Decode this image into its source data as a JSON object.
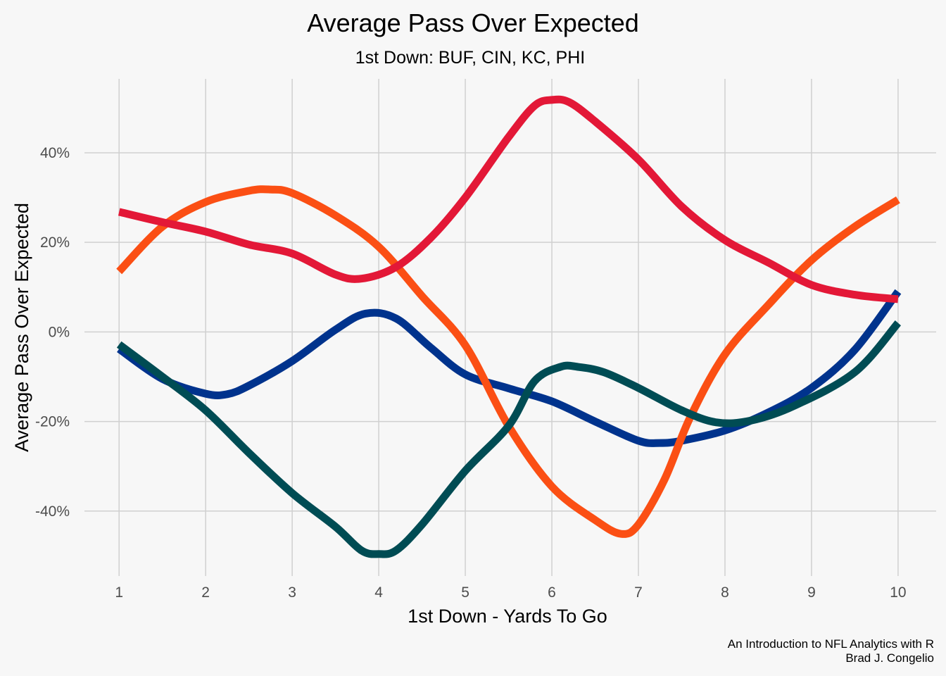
{
  "chart_data": {
    "type": "line",
    "title": "Average Pass Over Expected",
    "subtitle": "1st Down: BUF, CIN, KC, PHI",
    "xlabel": "1st Down - Yards To Go",
    "ylabel": "Average Pass Over Expected",
    "caption": [
      "An Introduction to NFL Analytics with R",
      "Brad J. Congelio"
    ],
    "x": [
      1,
      2,
      3,
      4,
      5,
      6,
      7,
      8,
      9,
      10
    ],
    "x_ticks": [
      "1",
      "2",
      "3",
      "4",
      "5",
      "6",
      "7",
      "8",
      "9",
      "10"
    ],
    "y_ticks": [
      {
        "value": -40,
        "label": "-40%"
      },
      {
        "value": -20,
        "label": "-20%"
      },
      {
        "value": 0,
        "label": "0%"
      },
      {
        "value": 20,
        "label": "20%"
      },
      {
        "value": 40,
        "label": "40%"
      }
    ],
    "xlim": [
      0.6,
      10.44
    ],
    "ylim": [
      -54.5,
      56.5
    ],
    "grid": true,
    "legend": "none",
    "series": [
      {
        "color": "#00338D",
        "values": [
          [
            1,
            -3.8
          ],
          [
            1.5,
            -10.5
          ],
          [
            2,
            -13.8
          ],
          [
            2.25,
            -13.9
          ],
          [
            2.5,
            -12
          ],
          [
            3,
            -6.5
          ],
          [
            3.5,
            0.5
          ],
          [
            3.85,
            4.1
          ],
          [
            4.2,
            3
          ],
          [
            4.6,
            -3.5
          ],
          [
            5,
            -9.5
          ],
          [
            5.5,
            -12.6
          ],
          [
            6,
            -15.5
          ],
          [
            6.5,
            -20
          ],
          [
            7,
            -24.3
          ],
          [
            7.25,
            -24.8
          ],
          [
            7.5,
            -24.3
          ],
          [
            8,
            -22
          ],
          [
            8.5,
            -18
          ],
          [
            9,
            -12.5
          ],
          [
            9.5,
            -4
          ],
          [
            10,
            9
          ]
        ]
      },
      {
        "color": "#FB4F14",
        "values": [
          [
            1,
            13.5
          ],
          [
            1.5,
            23.5
          ],
          [
            2,
            29
          ],
          [
            2.5,
            31.5
          ],
          [
            2.75,
            31.8
          ],
          [
            3,
            31
          ],
          [
            3.5,
            26
          ],
          [
            4,
            19
          ],
          [
            4.5,
            8
          ],
          [
            5,
            -3
          ],
          [
            5.5,
            -21
          ],
          [
            6,
            -34.5
          ],
          [
            6.5,
            -42
          ],
          [
            6.8,
            -45.1
          ],
          [
            7,
            -43
          ],
          [
            7.3,
            -33
          ],
          [
            7.6,
            -19
          ],
          [
            8,
            -5
          ],
          [
            8.5,
            6
          ],
          [
            9,
            16
          ],
          [
            9.5,
            23.5
          ],
          [
            10,
            29.5
          ]
        ]
      },
      {
        "color": "#E31837",
        "values": [
          [
            1,
            26.8
          ],
          [
            1.5,
            24.5
          ],
          [
            2,
            22.4
          ],
          [
            2.5,
            19.5
          ],
          [
            3,
            17.5
          ],
          [
            3.5,
            12.8
          ],
          [
            3.8,
            11.9
          ],
          [
            4.2,
            14.5
          ],
          [
            4.6,
            21
          ],
          [
            5,
            30
          ],
          [
            5.5,
            43.5
          ],
          [
            5.8,
            50.5
          ],
          [
            6,
            51.8
          ],
          [
            6.2,
            51.3
          ],
          [
            6.5,
            47
          ],
          [
            7,
            38.5
          ],
          [
            7.5,
            28
          ],
          [
            8,
            20.5
          ],
          [
            8.5,
            15.5
          ],
          [
            9,
            10.5
          ],
          [
            9.5,
            8.3
          ],
          [
            10,
            7.3
          ]
        ]
      },
      {
        "color": "#004C54",
        "values": [
          [
            1,
            -2.8
          ],
          [
            1.5,
            -10
          ],
          [
            2,
            -17.5
          ],
          [
            2.5,
            -27
          ],
          [
            3,
            -36
          ],
          [
            3.5,
            -43.5
          ],
          [
            3.8,
            -48.8
          ],
          [
            4,
            -49.6
          ],
          [
            4.2,
            -48.8
          ],
          [
            4.5,
            -43
          ],
          [
            5,
            -31
          ],
          [
            5.5,
            -21
          ],
          [
            5.8,
            -11
          ],
          [
            6.1,
            -7.8
          ],
          [
            6.3,
            -7.8
          ],
          [
            6.6,
            -9
          ],
          [
            7,
            -12.5
          ],
          [
            7.5,
            -17.5
          ],
          [
            7.9,
            -20.2
          ],
          [
            8.3,
            -19.8
          ],
          [
            8.8,
            -16.5
          ],
          [
            9.5,
            -9
          ],
          [
            10,
            2
          ]
        ]
      }
    ]
  }
}
